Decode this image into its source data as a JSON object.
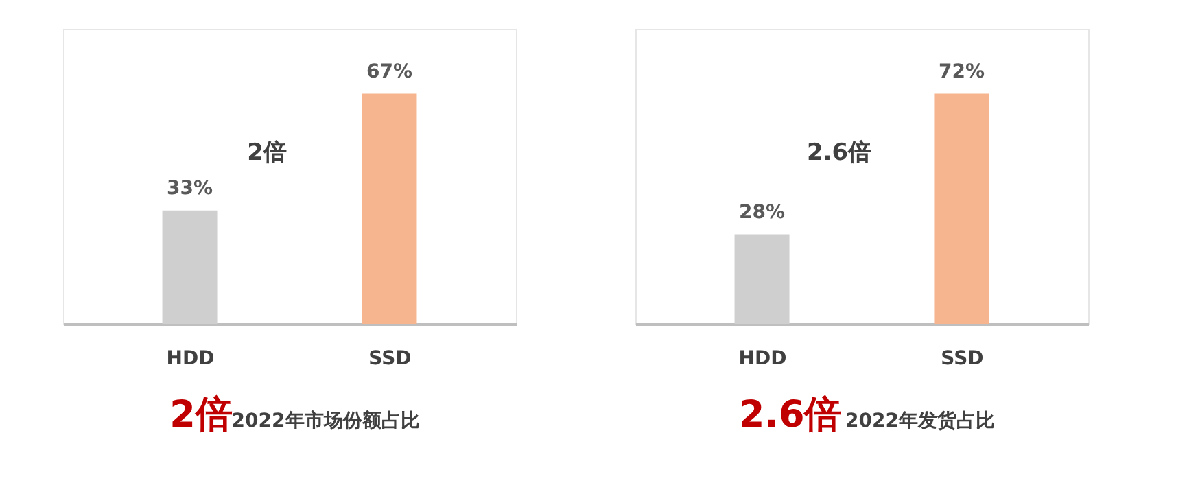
{
  "chart_data": [
    {
      "type": "bar",
      "title": "2倍",
      "subtitle": "2022年市场份额占比",
      "categories": [
        "HDD",
        "SSD"
      ],
      "values": [
        33,
        67
      ],
      "value_labels": [
        "33%",
        "67%"
      ],
      "colors": [
        "#cfcfcf",
        "#f6b48f"
      ],
      "annotations": [
        "2倍"
      ]
    },
    {
      "type": "bar",
      "title": "2.6倍",
      "subtitle": "2022年发货占比",
      "categories": [
        "HDD",
        "SSD"
      ],
      "values": [
        28,
        72
      ],
      "value_labels": [
        "28%",
        "72%"
      ],
      "colors": [
        "#cfcfcf",
        "#f6b48f"
      ],
      "annotations": [
        "2.6倍"
      ]
    }
  ]
}
